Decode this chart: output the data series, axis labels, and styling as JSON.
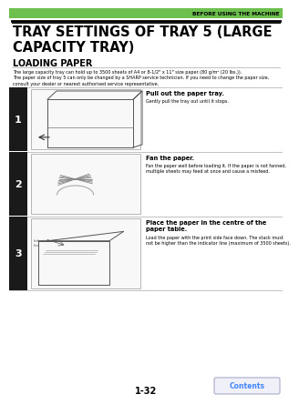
{
  "bg_color": "#ffffff",
  "header_bar_color": "#6dc04e",
  "header_text": "BEFORE USING THE MACHINE",
  "title": "TRAY SETTINGS OF TRAY 5 (LARGE\nCAPACITY TRAY)",
  "subtitle": "LOADING PAPER",
  "body_line1": "The large capacity tray can hold up to 3500 sheets of A4 or 8-1/2\" x 11\" size paper (80 g/m² (20 lbs.)).",
  "body_line2": "The paper size of tray 5 can only be changed by a SHARP service technician. If you need to change the paper size,",
  "body_line3": "consult your dealer or nearest authorised service representative.",
  "steps": [
    {
      "number": "1",
      "title": "Pull out the paper tray.",
      "desc": "Gently pull the tray out until it stops."
    },
    {
      "number": "2",
      "title": "Fan the paper.",
      "desc": "Fan the paper well before loading it. If the paper is not fanned,\nmultiple sheets may feed at once and cause a misfeed."
    },
    {
      "number": "3",
      "title": "Place the paper in the centre of the\npaper table.",
      "desc": "Load the paper with the print side face down. The stack must\nnot be higher than the indicator line (maximum of 3500 sheets)."
    }
  ],
  "page_number": "1-32",
  "contents_btn_text": "Contents",
  "contents_btn_color": "#4488ff",
  "step_num_color": "#ffffff",
  "step_bg_color": "#1a1a1a",
  "separator_color": "#888888"
}
